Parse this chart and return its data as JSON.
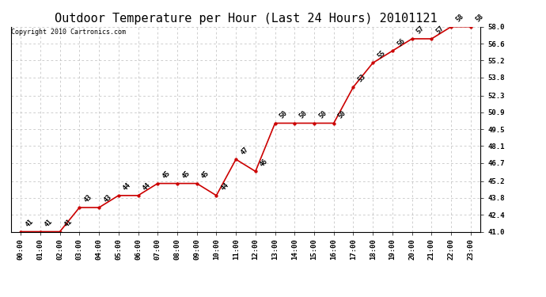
{
  "title": "Outdoor Temperature per Hour (Last 24 Hours) 20101121",
  "copyright": "Copyright 2010 Cartronics.com",
  "hours": [
    "00:00",
    "01:00",
    "02:00",
    "03:00",
    "04:00",
    "05:00",
    "06:00",
    "07:00",
    "08:00",
    "09:00",
    "10:00",
    "11:00",
    "12:00",
    "13:00",
    "14:00",
    "15:00",
    "16:00",
    "17:00",
    "18:00",
    "19:00",
    "20:00",
    "21:00",
    "22:00",
    "23:00"
  ],
  "temps": [
    41,
    41,
    41,
    43,
    43,
    44,
    44,
    45,
    45,
    45,
    44,
    47,
    46,
    50,
    50,
    50,
    50,
    53,
    55,
    56,
    57,
    57,
    58,
    58
  ],
  "ylim_min": 41.0,
  "ylim_max": 58.0,
  "line_color": "#cc0000",
  "marker_color": "#cc0000",
  "bg_color": "#ffffff",
  "grid_color": "#bbbbbb",
  "title_fontsize": 11,
  "label_fontsize": 6,
  "tick_fontsize": 6.5,
  "copyright_fontsize": 6,
  "yticks": [
    41.0,
    42.4,
    43.8,
    45.2,
    46.7,
    48.1,
    49.5,
    50.9,
    52.3,
    53.8,
    55.2,
    56.6,
    58.0
  ]
}
